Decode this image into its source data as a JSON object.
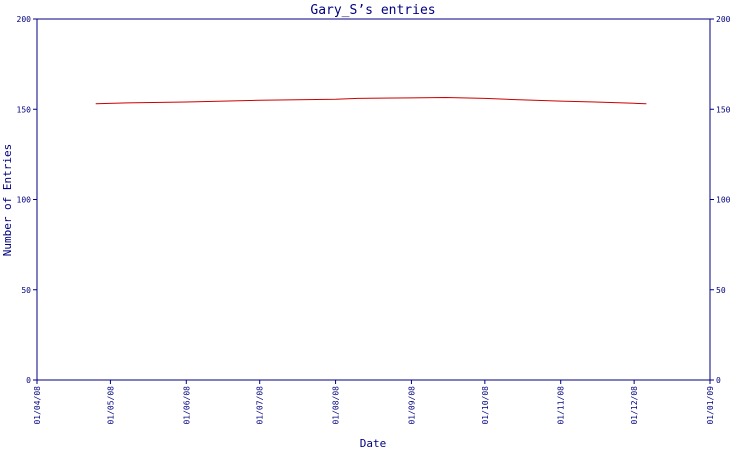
{
  "chart_data": {
    "type": "line",
    "title": "Gary_S’s entries",
    "xlabel": "Date",
    "ylabel": "Number of Entries",
    "ylim": [
      0,
      200
    ],
    "yticks": [
      "0",
      "50",
      "100",
      "150",
      "200"
    ],
    "ytick_values": [
      0,
      50,
      100,
      150,
      200
    ],
    "xticks": [
      "01/04/08",
      "01/05/08",
      "01/06/08",
      "01/07/08",
      "01/08/08",
      "01/09/08",
      "01/10/08",
      "01/11/08",
      "01/12/08",
      "01/01/09"
    ],
    "xtick_dates": [
      "2008-04-01",
      "2008-05-01",
      "2008-06-01",
      "2008-07-01",
      "2008-08-01",
      "2008-09-01",
      "2008-10-01",
      "2008-11-01",
      "2008-12-01",
      "2009-01-01"
    ],
    "xlim": [
      "2008-04-01",
      "2009-01-01"
    ],
    "grid": false,
    "series": [
      {
        "color": "#cc0000",
        "points": [
          {
            "x": "2008-04-25",
            "y": 153
          },
          {
            "x": "2008-05-08",
            "y": 153.5
          },
          {
            "x": "2008-06-01",
            "y": 154
          },
          {
            "x": "2008-07-01",
            "y": 155
          },
          {
            "x": "2008-08-01",
            "y": 155.5
          },
          {
            "x": "2008-08-10",
            "y": 156
          },
          {
            "x": "2008-09-01",
            "y": 156.3
          },
          {
            "x": "2008-09-15",
            "y": 156.5
          },
          {
            "x": "2008-10-01",
            "y": 156
          },
          {
            "x": "2008-10-10",
            "y": 155.5
          },
          {
            "x": "2008-11-01",
            "y": 154.5
          },
          {
            "x": "2008-11-15",
            "y": 154
          },
          {
            "x": "2008-12-01",
            "y": 153.3
          },
          {
            "x": "2008-12-06",
            "y": 153
          }
        ]
      }
    ]
  }
}
